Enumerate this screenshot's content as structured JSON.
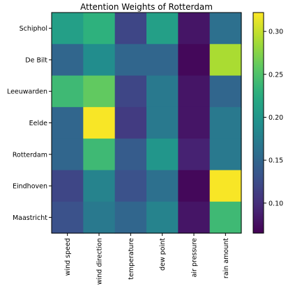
{
  "chart_data": {
    "type": "heatmap",
    "title": "Attention Weights of Rotterdam",
    "x_categories": [
      "wind speed",
      "wind direction",
      "temperature",
      "dew point",
      "air pressure",
      "rain amount"
    ],
    "y_categories": [
      "Schiphol",
      "De Bilt",
      "Leeuwarden",
      "Eelde",
      "Rotterdam",
      "Eindhoven",
      "Maastricht"
    ],
    "values": [
      [
        0.21,
        0.23,
        0.12,
        0.21,
        0.08,
        0.16
      ],
      [
        0.15,
        0.19,
        0.15,
        0.15,
        0.07,
        0.29
      ],
      [
        0.24,
        0.26,
        0.12,
        0.17,
        0.08,
        0.15
      ],
      [
        0.15,
        0.32,
        0.11,
        0.17,
        0.08,
        0.17
      ],
      [
        0.15,
        0.24,
        0.14,
        0.2,
        0.09,
        0.17
      ],
      [
        0.12,
        0.18,
        0.13,
        0.16,
        0.07,
        0.32
      ],
      [
        0.13,
        0.17,
        0.15,
        0.18,
        0.08,
        0.24
      ]
    ],
    "colorbar": {
      "range": [
        0.065,
        0.322
      ],
      "ticks": [
        0.1,
        0.15,
        0.2,
        0.25,
        0.3
      ],
      "tick_labels": [
        "0.10",
        "0.15",
        "0.20",
        "0.25",
        "0.30"
      ]
    },
    "colormap": "viridis",
    "grid": false
  }
}
